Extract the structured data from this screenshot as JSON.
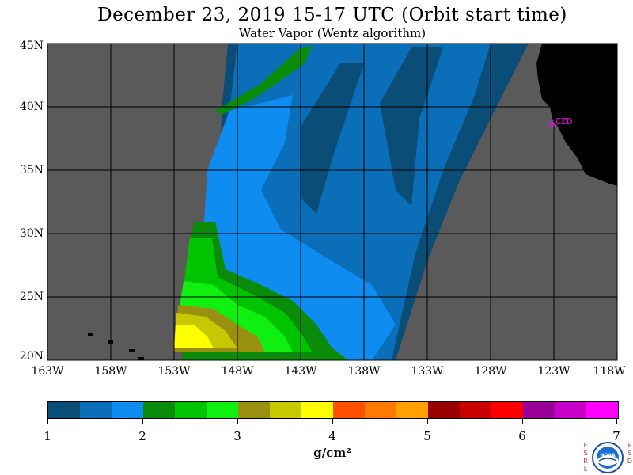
{
  "header": {
    "title": "December 23, 2019  15-17 UTC  (Orbit start time)",
    "subtitle": "Water Vapor (Wentz algorithm)"
  },
  "map": {
    "lat_labels": [
      "45N",
      "40N",
      "35N",
      "30N",
      "25N",
      "20N"
    ],
    "lon_labels": [
      "163W",
      "158W",
      "153W",
      "148W",
      "143W",
      "138W",
      "133W",
      "128W",
      "123W",
      "118W"
    ],
    "station_label": "CZD",
    "colors": {
      "no_data": "#5a5a5a",
      "land": "#000000",
      "station": "#ff00ff",
      "grid": "#000000"
    }
  },
  "colorbar": {
    "labels": [
      "1",
      "2",
      "3",
      "4",
      "5",
      "6",
      "7"
    ],
    "units": "g/cm²",
    "colors": [
      "#0a4d76",
      "#0a6fb8",
      "#0f8cf0",
      "#0a8c0a",
      "#00c400",
      "#10f010",
      "#9a9010",
      "#c8c800",
      "#ffff00",
      "#ff5000",
      "#ff7a00",
      "#ffa000",
      "#9a0000",
      "#c80000",
      "#ff0000",
      "#980098",
      "#c800c8",
      "#ff00ff"
    ]
  },
  "logo": {
    "left_letters": [
      "E",
      "S",
      "R",
      "L"
    ],
    "right_letters": [
      "P",
      "S",
      "D"
    ],
    "seal_text": "NOAA"
  }
}
